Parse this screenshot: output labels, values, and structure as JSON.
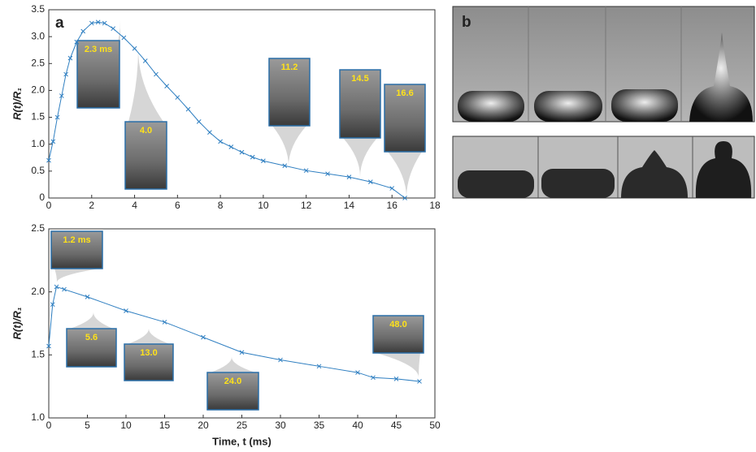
{
  "chart_data": [
    {
      "type": "line",
      "panel_label": "a",
      "ylabel": "R(t)/R₁",
      "color": "#2f7fc1",
      "x": [
        0,
        0.2,
        0.4,
        0.6,
        0.8,
        1.0,
        1.3,
        1.6,
        2.0,
        2.3,
        2.6,
        3.0,
        3.5,
        4.0,
        4.5,
        5.0,
        5.5,
        6.0,
        6.5,
        7.0,
        7.5,
        8.0,
        8.5,
        9.0,
        9.5,
        10,
        11,
        12,
        13,
        14,
        15,
        16,
        16.6
      ],
      "values": [
        0.7,
        1.05,
        1.5,
        1.9,
        2.3,
        2.6,
        2.9,
        3.1,
        3.25,
        3.27,
        3.25,
        3.15,
        2.98,
        2.78,
        2.55,
        2.3,
        2.08,
        1.87,
        1.65,
        1.42,
        1.22,
        1.05,
        0.95,
        0.85,
        0.76,
        0.69,
        0.6,
        0.51,
        0.45,
        0.39,
        0.3,
        0.18,
        0
      ],
      "xlim": [
        0,
        18
      ],
      "xticks": [
        0,
        2,
        4,
        6,
        8,
        10,
        12,
        14,
        16,
        18
      ],
      "ylim": [
        0,
        3.5
      ],
      "yticks": [
        0,
        0.5,
        {
          "value": 1,
          "label": "1.0"
        },
        1.5,
        {
          "value": 2,
          "label": "2.0"
        },
        2.5,
        {
          "value": 3,
          "label": "3.0"
        },
        3.5
      ],
      "annotations": [
        "2.3 ms",
        "4.0",
        "11.2",
        "14.5",
        "16.6"
      ]
    },
    {
      "type": "line",
      "ylabel": "R(t)/R₁",
      "xlabel": "Time, t (ms)",
      "color": "#2f7fc1",
      "x": [
        0,
        0.5,
        1.0,
        2,
        5,
        10,
        15,
        20,
        25,
        30,
        35,
        40,
        42,
        45,
        48
      ],
      "values": [
        1.57,
        1.9,
        2.04,
        2.02,
        1.96,
        1.85,
        1.76,
        1.64,
        1.52,
        1.46,
        1.41,
        1.36,
        1.32,
        1.31,
        1.29
      ],
      "xlim": [
        0,
        50
      ],
      "xticks": [
        0,
        5,
        10,
        15,
        20,
        25,
        30,
        35,
        40,
        45,
        50
      ],
      "ylim": [
        1,
        2.5
      ],
      "yticks": [
        {
          "value": 1,
          "label": "1.0"
        },
        1.5,
        {
          "value": 2,
          "label": "2.0"
        },
        2.5
      ],
      "annotations": [
        "1.2 ms",
        "5.6",
        "13.0",
        "24.0",
        "48.0"
      ]
    }
  ],
  "photo_panel": {
    "label": "b"
  }
}
